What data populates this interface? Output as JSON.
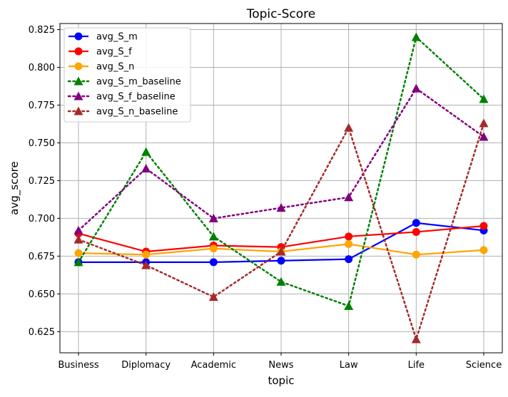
{
  "chart_data": {
    "type": "line",
    "title": "Topic-Score",
    "xlabel": "topic",
    "ylabel": "avg_score",
    "categories": [
      "Business",
      "Diplomacy",
      "Academic",
      "News",
      "Law",
      "Life",
      "Science"
    ],
    "ylim": [
      0.611,
      0.829
    ],
    "yticks": [
      0.625,
      0.65,
      0.675,
      0.7,
      0.725,
      0.75,
      0.775,
      0.8,
      0.825
    ],
    "ytick_labels": [
      "0.625",
      "0.650",
      "0.675",
      "0.700",
      "0.725",
      "0.750",
      "0.775",
      "0.800",
      "0.825"
    ],
    "grid": true,
    "legend_position": "top-left",
    "series": [
      {
        "name": "avg_S_m",
        "color": "#0000ff",
        "marker": "circle",
        "linestyle": "solid",
        "values": [
          0.671,
          0.671,
          0.671,
          0.672,
          0.673,
          0.697,
          0.692
        ]
      },
      {
        "name": "avg_S_f",
        "color": "#ff0000",
        "marker": "circle",
        "linestyle": "solid",
        "values": [
          0.69,
          0.678,
          0.682,
          0.681,
          0.688,
          0.691,
          0.695
        ]
      },
      {
        "name": "avg_S_n",
        "color": "#ffa500",
        "marker": "circle",
        "linestyle": "solid",
        "values": [
          0.677,
          0.676,
          0.68,
          0.678,
          0.683,
          0.676,
          0.679
        ]
      },
      {
        "name": "avg_S_m_baseline",
        "color": "#008000",
        "marker": "triangle",
        "linestyle": "dotted",
        "values": [
          0.671,
          0.744,
          0.688,
          0.658,
          0.642,
          0.82,
          0.779
        ]
      },
      {
        "name": "avg_S_f_baseline",
        "color": "#800080",
        "marker": "triangle",
        "linestyle": "dotted",
        "values": [
          0.692,
          0.733,
          0.7,
          0.707,
          0.714,
          0.786,
          0.754
        ]
      },
      {
        "name": "avg_S_n_baseline",
        "color": "#a52a2a",
        "marker": "triangle",
        "linestyle": "dotted",
        "values": [
          0.686,
          0.669,
          0.648,
          0.678,
          0.76,
          0.62,
          0.763
        ]
      }
    ]
  }
}
